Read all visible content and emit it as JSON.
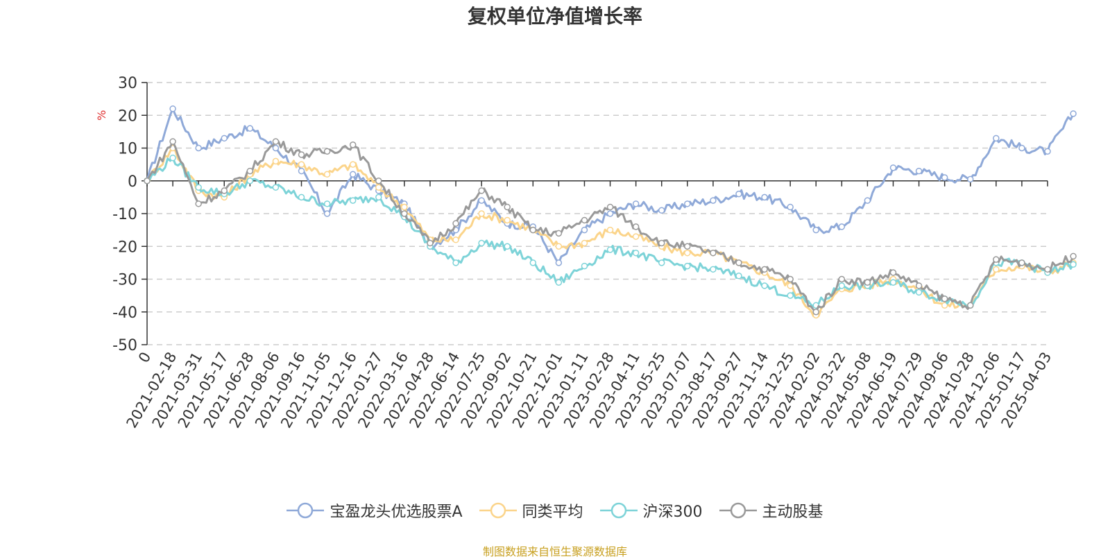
{
  "chart_data": {
    "type": "line",
    "title": "复权单位净值增长率",
    "ylabel": "%",
    "ylim": [
      -50,
      30
    ],
    "yticks": [
      30,
      20,
      10,
      0,
      -10,
      -20,
      -30,
      -40,
      -50
    ],
    "x_tick_labels": [
      "0",
      "2021-02-18",
      "2021-03-31",
      "2021-05-17",
      "2021-06-28",
      "2021-08-06",
      "2021-09-16",
      "2021-11-05",
      "2021-12-16",
      "2022-01-27",
      "2022-03-16",
      "2022-04-28",
      "2022-06-14",
      "2022-07-25",
      "2022-09-02",
      "2022-10-21",
      "2022-12-01",
      "2023-01-11",
      "2023-02-28",
      "2023-04-11",
      "2023-05-25",
      "2023-07-07",
      "2023-08-17",
      "2023-09-27",
      "2023-11-14",
      "2023-12-25",
      "2024-02-02",
      "2024-03-22",
      "2024-05-08",
      "2024-06-19",
      "2024-07-29",
      "2024-09-06",
      "2024-10-28",
      "2024-12-06",
      "2025-01-17",
      "2025-04-03"
    ],
    "grid": "horizontal-dashed",
    "legend_position": "bottom",
    "series": [
      {
        "name": "宝盈龙头优选股票A",
        "color": "#8fa9d8",
        "values": [
          0,
          22,
          10,
          13,
          16,
          10,
          3,
          -10,
          2,
          -3,
          -7,
          -20,
          -15,
          -6,
          -13,
          -14,
          -25,
          -15,
          -10,
          -7,
          -9,
          -7,
          -6,
          -4,
          -5,
          -8,
          -15,
          -14,
          -6,
          4,
          3,
          1,
          0.5,
          13,
          10,
          9,
          20.5
        ]
      },
      {
        "name": "同类平均",
        "color": "#fbd48a",
        "values": [
          0,
          10,
          -3,
          -5,
          2,
          6,
          5,
          2,
          5,
          -2,
          -8,
          -18,
          -18,
          -10,
          -12,
          -15,
          -20,
          -19,
          -15,
          -17,
          -20,
          -22,
          -22,
          -25,
          -28,
          -32,
          -41,
          -33,
          -32,
          -30,
          -33,
          -38,
          -38,
          -27,
          -26,
          -28,
          -25
        ]
      },
      {
        "name": "沪深300",
        "color": "#7dd3d8",
        "values": [
          0,
          7,
          -2,
          -4,
          0,
          -2,
          -5,
          -7,
          -6,
          -5,
          -11,
          -20,
          -25,
          -19,
          -20,
          -25,
          -31,
          -26,
          -21,
          -22,
          -25,
          -26,
          -27,
          -29,
          -32,
          -35,
          -38,
          -32,
          -32,
          -31,
          -34,
          -36,
          -38,
          -25,
          -25,
          -28,
          -25.5
        ]
      },
      {
        "name": "主动股基",
        "color": "#999999",
        "values": [
          0,
          12,
          -7,
          -3,
          3,
          12,
          8,
          9,
          11,
          0,
          -10,
          -19,
          -13,
          -3,
          -8,
          -15,
          -16,
          -12,
          -8,
          -14,
          -19,
          -20,
          -22,
          -25,
          -27,
          -30,
          -40,
          -30,
          -31,
          -28,
          -32,
          -36,
          -38,
          -24,
          -25,
          -27,
          -23
        ]
      }
    ]
  },
  "source_text": "制图数据来自恒生聚源数据库"
}
